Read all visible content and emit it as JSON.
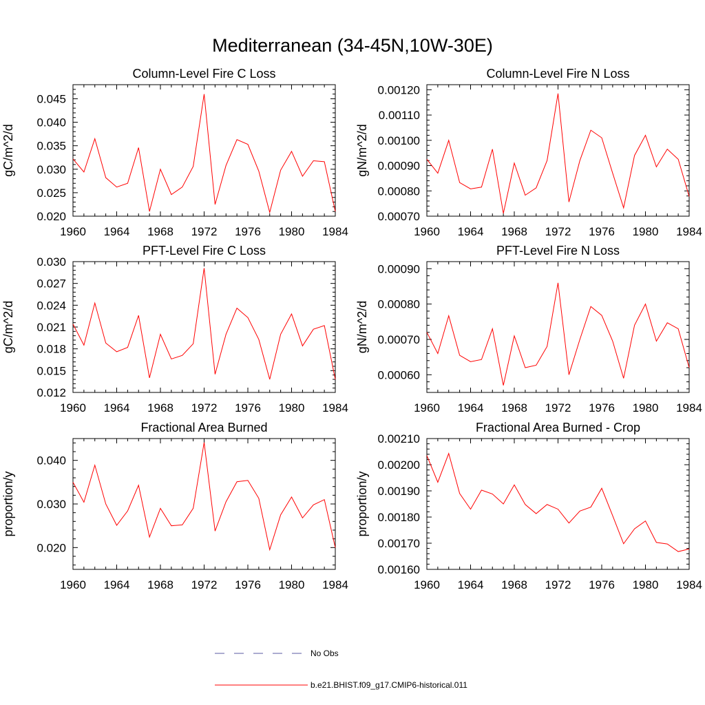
{
  "figure": {
    "title": "Mediterranean (34-45N,10W-30E)"
  },
  "legend": {
    "entries": [
      {
        "label": "No Obs",
        "color": "#5a5aa0",
        "style": "dashed"
      },
      {
        "label": "b.e21.BHIST.f09_g17.CMIP6-historical.011",
        "color": "#ff0000",
        "style": "solid"
      }
    ]
  },
  "chart_data": [
    {
      "type": "line",
      "title": "Column-Level Fire C Loss",
      "ylabel": "gC/m^2/d",
      "xlim": [
        1960,
        1984
      ],
      "ylim": [
        0.02,
        0.048
      ],
      "xticks": [
        1960,
        1964,
        1968,
        1972,
        1976,
        1980,
        1984
      ],
      "xtick_labels": [
        "1960",
        "1964",
        "1968",
        "1972",
        "1976",
        "1980",
        "1984"
      ],
      "yticks": [
        0.02,
        0.025,
        0.03,
        0.035,
        0.04,
        0.045
      ],
      "ytick_labels": [
        "0.020",
        "0.025",
        "0.030",
        "0.035",
        "0.040",
        "0.045"
      ],
      "x": [
        1960,
        1961,
        1962,
        1963,
        1964,
        1965,
        1966,
        1967,
        1968,
        1969,
        1970,
        1971,
        1972,
        1973,
        1974,
        1975,
        1976,
        1977,
        1978,
        1979,
        1980,
        1981,
        1982,
        1983,
        1984
      ],
      "series": [
        {
          "name": "b.e21.BHIST.f09_g17.CMIP6-historical.011",
          "color": "#ff0000",
          "values": [
            0.0322,
            0.0294,
            0.0365,
            0.0282,
            0.0262,
            0.027,
            0.0346,
            0.021,
            0.03,
            0.0246,
            0.0262,
            0.0306,
            0.046,
            0.0225,
            0.0308,
            0.0363,
            0.0353,
            0.0296,
            0.0208,
            0.0298,
            0.0338,
            0.0285,
            0.0318,
            0.0316,
            0.021
          ]
        }
      ]
    },
    {
      "type": "line",
      "title": "Column-Level Fire N Loss",
      "ylabel": "gN/m^2/d",
      "xlim": [
        1960,
        1984
      ],
      "ylim": [
        0.0007,
        0.00122
      ],
      "xticks": [
        1960,
        1964,
        1968,
        1972,
        1976,
        1980,
        1984
      ],
      "xtick_labels": [
        "1960",
        "1964",
        "1968",
        "1972",
        "1976",
        "1980",
        "1984"
      ],
      "yticks": [
        0.0007,
        0.0008,
        0.0009,
        0.001,
        0.0011,
        0.0012
      ],
      "ytick_labels": [
        "0.00070",
        "0.00080",
        "0.00090",
        "0.00100",
        "0.00110",
        "0.00120"
      ],
      "x": [
        1960,
        1961,
        1962,
        1963,
        1964,
        1965,
        1966,
        1967,
        1968,
        1969,
        1970,
        1971,
        1972,
        1973,
        1974,
        1975,
        1976,
        1977,
        1978,
        1979,
        1980,
        1981,
        1982,
        1983,
        1984
      ],
      "series": [
        {
          "name": "b.e21.BHIST.f09_g17.CMIP6-historical.011",
          "color": "#ff0000",
          "values": [
            0.000925,
            0.00087,
            0.001,
            0.000833,
            0.000808,
            0.000815,
            0.000965,
            0.000711,
            0.00091,
            0.000783,
            0.000812,
            0.00092,
            0.001185,
            0.000756,
            0.00092,
            0.00104,
            0.00101,
            0.00087,
            0.000733,
            0.00094,
            0.00102,
            0.000895,
            0.000965,
            0.000925,
            0.000778
          ]
        }
      ]
    },
    {
      "type": "line",
      "title": "PFT-Level Fire C Loss",
      "ylabel": "gC/m^2/d",
      "xlim": [
        1960,
        1984
      ],
      "ylim": [
        0.012,
        0.03
      ],
      "xticks": [
        1960,
        1964,
        1968,
        1972,
        1976,
        1980,
        1984
      ],
      "xtick_labels": [
        "1960",
        "1964",
        "1968",
        "1972",
        "1976",
        "1980",
        "1984"
      ],
      "yticks": [
        0.012,
        0.015,
        0.018,
        0.021,
        0.024,
        0.027,
        0.03
      ],
      "ytick_labels": [
        "0.012",
        "0.015",
        "0.018",
        "0.021",
        "0.024",
        "0.027",
        "0.030"
      ],
      "x": [
        1960,
        1961,
        1962,
        1963,
        1964,
        1965,
        1966,
        1967,
        1968,
        1969,
        1970,
        1971,
        1972,
        1973,
        1974,
        1975,
        1976,
        1977,
        1978,
        1979,
        1980,
        1981,
        1982,
        1983,
        1984
      ],
      "series": [
        {
          "name": "b.e21.BHIST.f09_g17.CMIP6-historical.011",
          "color": "#ff0000",
          "values": [
            0.0214,
            0.0185,
            0.0243,
            0.0188,
            0.0176,
            0.0182,
            0.0226,
            0.014,
            0.02,
            0.0166,
            0.0171,
            0.0187,
            0.0291,
            0.0145,
            0.02,
            0.0236,
            0.0223,
            0.0193,
            0.0138,
            0.02,
            0.0228,
            0.0184,
            0.0207,
            0.0212,
            0.0138
          ]
        }
      ]
    },
    {
      "type": "line",
      "title": "PFT-Level Fire N Loss",
      "ylabel": "gN/m^2/d",
      "xlim": [
        1960,
        1984
      ],
      "ylim": [
        0.00055,
        0.00092
      ],
      "xticks": [
        1960,
        1964,
        1968,
        1972,
        1976,
        1980,
        1984
      ],
      "xtick_labels": [
        "1960",
        "1964",
        "1968",
        "1972",
        "1976",
        "1980",
        "1984"
      ],
      "yticks": [
        0.0006,
        0.0007,
        0.0008,
        0.0009
      ],
      "ytick_labels": [
        "0.00060",
        "0.00070",
        "0.00080",
        "0.00090"
      ],
      "x": [
        1960,
        1961,
        1962,
        1963,
        1964,
        1965,
        1966,
        1967,
        1968,
        1969,
        1970,
        1971,
        1972,
        1973,
        1974,
        1975,
        1976,
        1977,
        1978,
        1979,
        1980,
        1981,
        1982,
        1983,
        1984
      ],
      "series": [
        {
          "name": "b.e21.BHIST.f09_g17.CMIP6-historical.011",
          "color": "#ff0000",
          "values": [
            0.00072,
            0.00066,
            0.000767,
            0.000655,
            0.000637,
            0.000643,
            0.00073,
            0.00057,
            0.00071,
            0.00062,
            0.000627,
            0.00068,
            0.00086,
            0.0006,
            0.0007,
            0.000793,
            0.000768,
            0.000695,
            0.00059,
            0.00074,
            0.0008,
            0.000695,
            0.000747,
            0.00073,
            0.00062
          ]
        }
      ]
    },
    {
      "type": "line",
      "title": "Fractional Area Burned",
      "ylabel": "proportion/y",
      "xlim": [
        1960,
        1984
      ],
      "ylim": [
        0.015,
        0.045
      ],
      "xticks": [
        1960,
        1964,
        1968,
        1972,
        1976,
        1980,
        1984
      ],
      "xtick_labels": [
        "1960",
        "1964",
        "1968",
        "1972",
        "1976",
        "1980",
        "1984"
      ],
      "yticks": [
        0.02,
        0.03,
        0.04
      ],
      "ytick_labels": [
        "0.020",
        "0.030",
        "0.040"
      ],
      "x": [
        1960,
        1961,
        1962,
        1963,
        1964,
        1965,
        1966,
        1967,
        1968,
        1969,
        1970,
        1971,
        1972,
        1973,
        1974,
        1975,
        1976,
        1977,
        1978,
        1979,
        1980,
        1981,
        1982,
        1983,
        1984
      ],
      "series": [
        {
          "name": "b.e21.BHIST.f09_g17.CMIP6-historical.011",
          "color": "#ff0000",
          "values": [
            0.035,
            0.0304,
            0.0389,
            0.03,
            0.0251,
            0.0284,
            0.0343,
            0.0224,
            0.029,
            0.025,
            0.0252,
            0.029,
            0.0441,
            0.0238,
            0.0305,
            0.0351,
            0.0354,
            0.0313,
            0.0195,
            0.0275,
            0.0316,
            0.0268,
            0.0298,
            0.031,
            0.02
          ]
        }
      ]
    },
    {
      "type": "line",
      "title": "Fractional Area Burned - Crop",
      "ylabel": "proportion/y",
      "xlim": [
        1960,
        1984
      ],
      "ylim": [
        0.0016,
        0.0021
      ],
      "xticks": [
        1960,
        1964,
        1968,
        1972,
        1976,
        1980,
        1984
      ],
      "xtick_labels": [
        "1960",
        "1964",
        "1968",
        "1972",
        "1976",
        "1980",
        "1984"
      ],
      "yticks": [
        0.0016,
        0.0017,
        0.0018,
        0.0019,
        0.002,
        0.0021
      ],
      "ytick_labels": [
        "0.00160",
        "0.00170",
        "0.00180",
        "0.00190",
        "0.00200",
        "0.00210"
      ],
      "x": [
        1960,
        1961,
        1962,
        1963,
        1964,
        1965,
        1966,
        1967,
        1968,
        1969,
        1970,
        1971,
        1972,
        1973,
        1974,
        1975,
        1976,
        1977,
        1978,
        1979,
        1980,
        1981,
        1982,
        1983,
        1984
      ],
      "series": [
        {
          "name": "b.e21.BHIST.f09_g17.CMIP6-historical.011",
          "color": "#ff0000",
          "values": [
            0.002035,
            0.001933,
            0.002043,
            0.00189,
            0.00183,
            0.001903,
            0.001888,
            0.00185,
            0.001923,
            0.001848,
            0.001813,
            0.001848,
            0.00183,
            0.001777,
            0.001823,
            0.001838,
            0.00191,
            0.001805,
            0.001698,
            0.001755,
            0.001785,
            0.001703,
            0.001697,
            0.001668,
            0.001678
          ]
        }
      ]
    }
  ]
}
